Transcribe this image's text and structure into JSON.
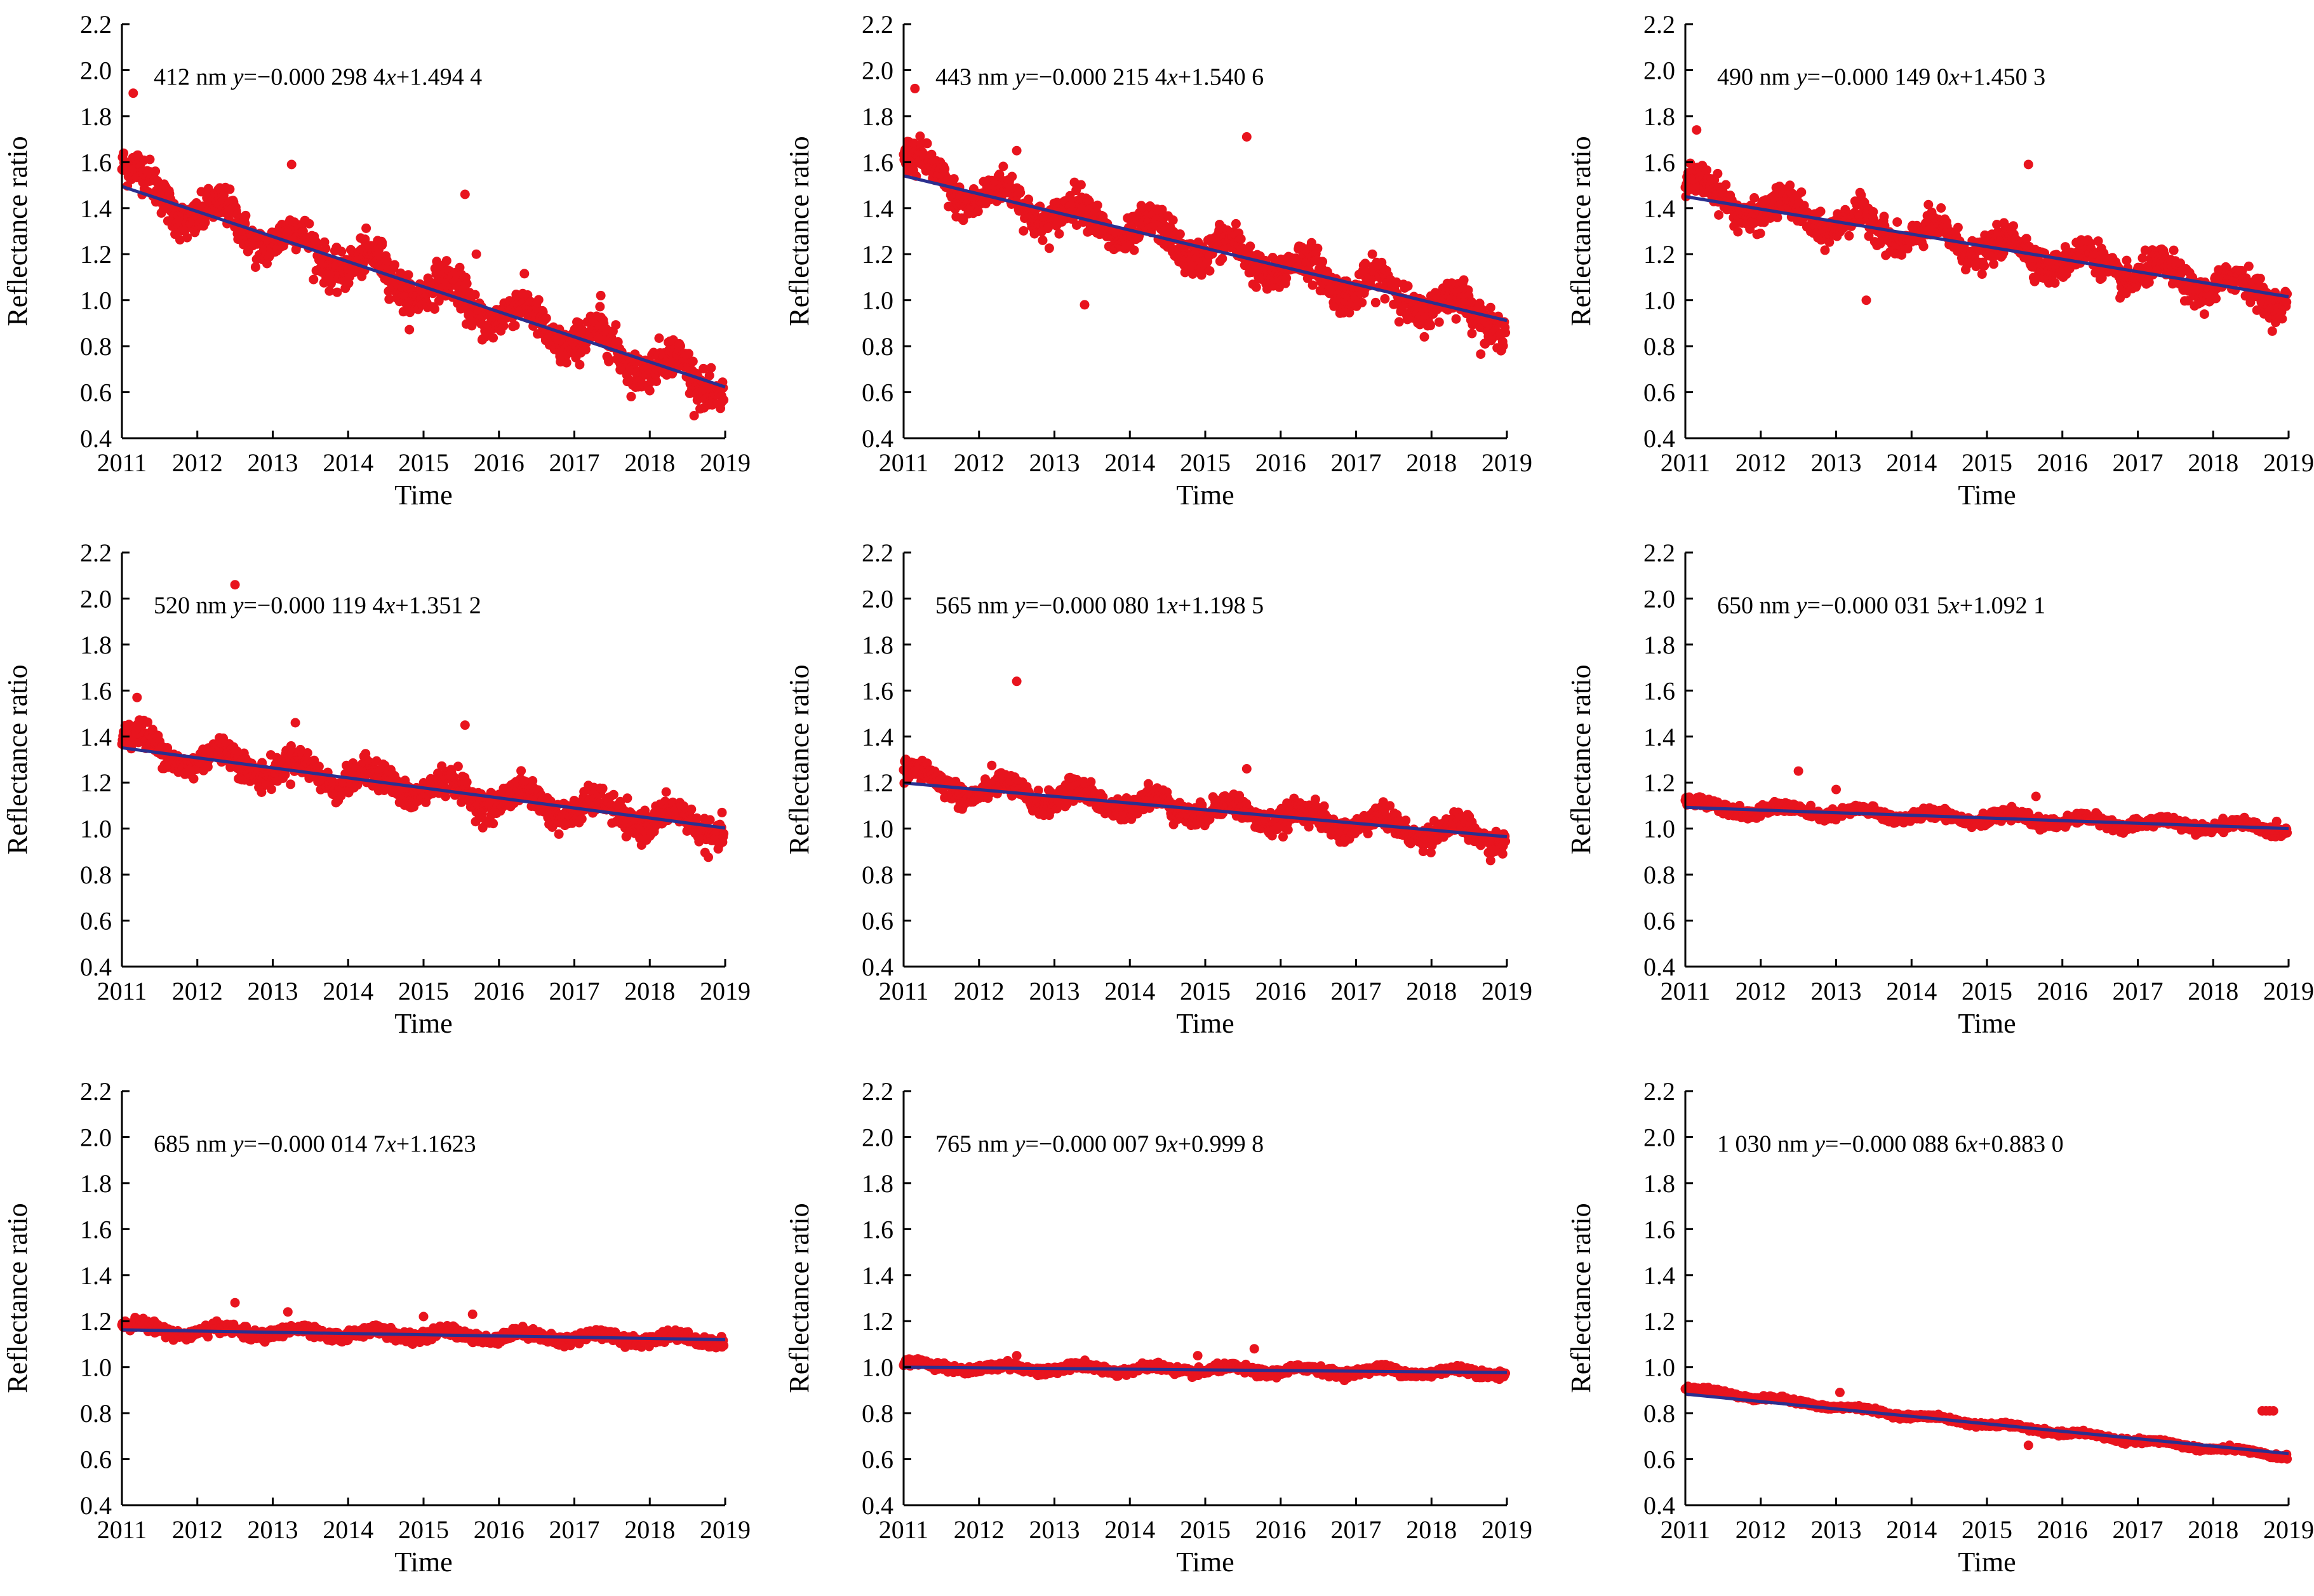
{
  "chart_data": [
    {
      "type": "scatter",
      "band": "412 nm",
      "eq_pre": "y",
      "eq_mid": "=−0.000 298 4",
      "eq_x": "x",
      "eq_post": "+1.494 4",
      "slope": -0.0002984,
      "intercept": 1.4944,
      "spread": 0.075,
      "xlabel": "Time",
      "ylabel": "Reflectance ratio",
      "ylim": [
        0.4,
        2.2
      ],
      "yticks": [
        "0.4",
        "0.6",
        "0.8",
        "1.0",
        "1.2",
        "1.4",
        "1.6",
        "1.8",
        "2.0",
        "2.2"
      ],
      "xticks": [
        "2011",
        "2012",
        "2013",
        "2014",
        "2015",
        "2016",
        "2017",
        "2018",
        "2019"
      ],
      "outliers": [
        [
          2011.15,
          1.9
        ],
        [
          2013.25,
          1.59
        ],
        [
          2015.55,
          1.46
        ],
        [
          2014.45,
          1.25
        ],
        [
          2015.7,
          1.2
        ],
        [
          2017.35,
          1.02
        ]
      ],
      "marker_color": "#e8141e",
      "line_color": "#2b2f8f"
    },
    {
      "type": "scatter",
      "band": "443 nm",
      "eq_pre": "y",
      "eq_mid": "=−0.000 215 4",
      "eq_x": "x",
      "eq_post": "+1.540 6",
      "slope": -0.0002154,
      "intercept": 1.5406,
      "spread": 0.07,
      "xlabel": "Time",
      "ylabel": "Reflectance ratio",
      "ylim": [
        0.4,
        2.2
      ],
      "yticks": [
        "0.4",
        "0.6",
        "0.8",
        "1.0",
        "1.2",
        "1.4",
        "1.6",
        "1.8",
        "2.0",
        "2.2"
      ],
      "xticks": [
        "2011",
        "2012",
        "2013",
        "2014",
        "2015",
        "2016",
        "2017",
        "2018",
        "2019"
      ],
      "outliers": [
        [
          2011.15,
          1.92
        ],
        [
          2012.5,
          1.65
        ],
        [
          2015.55,
          1.71
        ],
        [
          2013.4,
          0.98
        ]
      ],
      "marker_color": "#e8141e",
      "line_color": "#2b2f8f"
    },
    {
      "type": "scatter",
      "band": "490 nm",
      "eq_pre": "y",
      "eq_mid": "=−0.000 149 0",
      "eq_x": "x",
      "eq_post": "+1.450 3",
      "slope": -0.000149,
      "intercept": 1.4503,
      "spread": 0.06,
      "xlabel": "Time",
      "ylabel": "Reflectance ratio",
      "ylim": [
        0.4,
        2.2
      ],
      "yticks": [
        "0.4",
        "0.6",
        "0.8",
        "1.0",
        "1.2",
        "1.4",
        "1.6",
        "1.8",
        "2.0",
        "2.2"
      ],
      "xticks": [
        "2011",
        "2012",
        "2013",
        "2014",
        "2015",
        "2016",
        "2017",
        "2018",
        "2019"
      ],
      "outliers": [
        [
          2015.55,
          1.59
        ],
        [
          2011.15,
          1.74
        ],
        [
          2013.4,
          1.0
        ]
      ],
      "marker_color": "#e8141e",
      "line_color": "#2b2f8f"
    },
    {
      "type": "scatter",
      "band": "520 nm",
      "eq_pre": "y",
      "eq_mid": "=−0.000 119 4",
      "eq_x": "x",
      "eq_post": "+1.351 2",
      "slope": -0.0001194,
      "intercept": 1.3512,
      "spread": 0.055,
      "xlabel": "Time",
      "ylabel": "Reflectance ratio",
      "ylim": [
        0.4,
        2.2
      ],
      "yticks": [
        "0.4",
        "0.6",
        "0.8",
        "1.0",
        "1.2",
        "1.4",
        "1.6",
        "1.8",
        "2.0",
        "2.2"
      ],
      "xticks": [
        "2011",
        "2012",
        "2013",
        "2014",
        "2015",
        "2016",
        "2017",
        "2018",
        "2019"
      ],
      "outliers": [
        [
          2012.5,
          2.06
        ],
        [
          2015.55,
          1.45
        ],
        [
          2013.3,
          1.46
        ],
        [
          2011.2,
          1.57
        ]
      ],
      "marker_color": "#e8141e",
      "line_color": "#2b2f8f"
    },
    {
      "type": "scatter",
      "band": "565 nm",
      "eq_pre": "y",
      "eq_mid": "=−0.000 080 1",
      "eq_x": "x",
      "eq_post": "+1.198 5",
      "slope": -8.01e-05,
      "intercept": 1.1985,
      "spread": 0.045,
      "xlabel": "Time",
      "ylabel": "Reflectance ratio",
      "ylim": [
        0.4,
        2.2
      ],
      "yticks": [
        "0.4",
        "0.6",
        "0.8",
        "1.0",
        "1.2",
        "1.4",
        "1.6",
        "1.8",
        "2.0",
        "2.2"
      ],
      "xticks": [
        "2011",
        "2012",
        "2013",
        "2014",
        "2015",
        "2016",
        "2017",
        "2018",
        "2019"
      ],
      "outliers": [
        [
          2012.5,
          1.64
        ],
        [
          2015.55,
          1.26
        ]
      ],
      "marker_color": "#e8141e",
      "line_color": "#2b2f8f"
    },
    {
      "type": "scatter",
      "band": "650 nm",
      "eq_pre": "y",
      "eq_mid": "=−0.000 031 5",
      "eq_x": "x",
      "eq_post": "+1.092 1",
      "slope": -3.15e-05,
      "intercept": 1.0921,
      "spread": 0.02,
      "xlabel": "Time",
      "ylabel": "Reflectance ratio",
      "ylim": [
        0.4,
        2.2
      ],
      "yticks": [
        "0.4",
        "0.6",
        "0.8",
        "1.0",
        "1.2",
        "1.4",
        "1.6",
        "1.8",
        "2.0",
        "2.2"
      ],
      "xticks": [
        "2011",
        "2012",
        "2013",
        "2014",
        "2015",
        "2016",
        "2017",
        "2018",
        "2019"
      ],
      "outliers": [
        [
          2012.5,
          1.25
        ],
        [
          2013.0,
          1.17
        ],
        [
          2015.65,
          1.14
        ]
      ],
      "marker_color": "#e8141e",
      "line_color": "#2b2f8f"
    },
    {
      "type": "scatter",
      "band": "685 nm",
      "eq_pre": "y",
      "eq_mid": "=−0.000 014 7",
      "eq_x": "x",
      "eq_post": "+1.1623",
      "slope": -1.47e-05,
      "intercept": 1.1623,
      "spread": 0.02,
      "xlabel": "Time",
      "ylabel": "Reflectance ratio",
      "ylim": [
        0.4,
        2.2
      ],
      "yticks": [
        "0.4",
        "0.6",
        "0.8",
        "1.0",
        "1.2",
        "1.4",
        "1.6",
        "1.8",
        "2.0",
        "2.2"
      ],
      "xticks": [
        "2011",
        "2012",
        "2013",
        "2014",
        "2015",
        "2016",
        "2017",
        "2018",
        "2019"
      ],
      "outliers": [
        [
          2012.5,
          1.28
        ],
        [
          2013.2,
          1.24
        ],
        [
          2015.65,
          1.23
        ],
        [
          2015.0,
          1.22
        ]
      ],
      "marker_color": "#e8141e",
      "line_color": "#2b2f8f"
    },
    {
      "type": "scatter",
      "band": "765 nm",
      "eq_pre": "y",
      "eq_mid": "=−0.000 007 9",
      "eq_x": "x",
      "eq_post": "+0.999 8",
      "slope": -7.9e-06,
      "intercept": 0.9998,
      "spread": 0.015,
      "xlabel": "Time",
      "ylabel": "Reflectance ratio",
      "ylim": [
        0.4,
        2.2
      ],
      "yticks": [
        "0.4",
        "0.6",
        "0.8",
        "1.0",
        "1.2",
        "1.4",
        "1.6",
        "1.8",
        "2.0",
        "2.2"
      ],
      "xticks": [
        "2011",
        "2012",
        "2013",
        "2014",
        "2015",
        "2016",
        "2017",
        "2018",
        "2019"
      ],
      "outliers": [
        [
          2012.5,
          1.05
        ],
        [
          2015.65,
          1.08
        ],
        [
          2014.9,
          1.05
        ]
      ],
      "marker_color": "#e8141e",
      "line_color": "#2b2f8f"
    },
    {
      "type": "scatter",
      "band": "1 030 nm",
      "eq_pre": "y",
      "eq_mid": "=−0.000 088 6",
      "eq_x": "x",
      "eq_post": "+0.883 0",
      "slope": -8.86e-05,
      "intercept": 0.883,
      "spread": 0.008,
      "curvature": 0.035,
      "xlabel": "Time",
      "ylabel": "Reflectance ratio",
      "ylim": [
        0.4,
        2.2
      ],
      "yticks": [
        "0.4",
        "0.6",
        "0.8",
        "1.0",
        "1.2",
        "1.4",
        "1.6",
        "1.8",
        "2.0",
        "2.2"
      ],
      "xticks": [
        "2011",
        "2012",
        "2013",
        "2014",
        "2015",
        "2016",
        "2017",
        "2018",
        "2019"
      ],
      "outliers": [
        [
          2013.05,
          0.89
        ],
        [
          2018.65,
          0.81
        ],
        [
          2018.7,
          0.81
        ],
        [
          2018.75,
          0.81
        ],
        [
          2018.8,
          0.81
        ],
        [
          2015.55,
          0.66
        ]
      ],
      "marker_color": "#e8141e",
      "line_color": "#2b2f8f"
    }
  ]
}
